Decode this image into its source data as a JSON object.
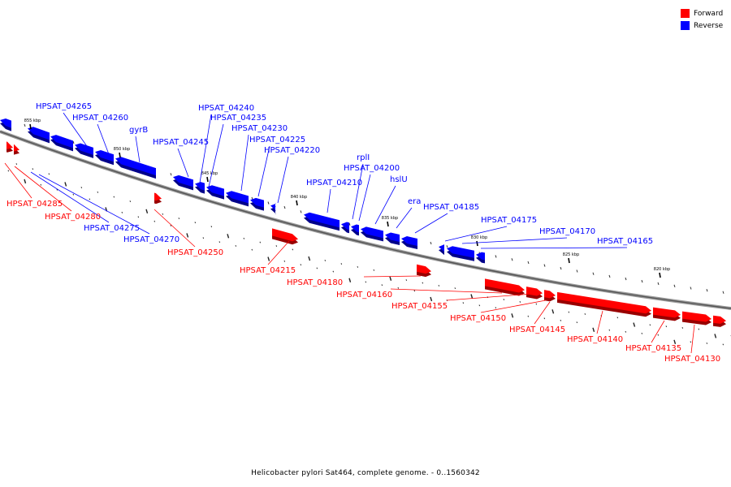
{
  "legend": {
    "forward_label": "Forward",
    "reverse_label": "Reverse",
    "forward_color": "#ff0000",
    "reverse_color": "#0000ff"
  },
  "caption": "Helicobacter pylori Sat464, complete genome. - 0..1560342",
  "colors": {
    "forward": "#ff0000",
    "reverse": "#0000ff",
    "backbone": "#7a7a7a"
  },
  "scale_labels": [
    "855 kbp",
    "850 kbp",
    "845 kbp",
    "840 kbp",
    "835 kbp",
    "830 kbp",
    "825 kbp",
    "820 kbp"
  ],
  "genes": [
    {
      "label": "HPSAT_04265",
      "strand": "reverse"
    },
    {
      "label": "HPSAT_04260",
      "strand": "reverse"
    },
    {
      "label": "gyrB",
      "strand": "reverse"
    },
    {
      "label": "HPSAT_04245",
      "strand": "reverse"
    },
    {
      "label": "HPSAT_04240",
      "strand": "reverse"
    },
    {
      "label": "HPSAT_04235",
      "strand": "reverse"
    },
    {
      "label": "HPSAT_04230",
      "strand": "reverse"
    },
    {
      "label": "HPSAT_04225",
      "strand": "reverse"
    },
    {
      "label": "HPSAT_04220",
      "strand": "reverse"
    },
    {
      "label": "rplI",
      "strand": "reverse"
    },
    {
      "label": "HPSAT_04200",
      "strand": "reverse"
    },
    {
      "label": "HPSAT_04210",
      "strand": "reverse"
    },
    {
      "label": "hslU",
      "strand": "reverse"
    },
    {
      "label": "era",
      "strand": "reverse"
    },
    {
      "label": "HPSAT_04185",
      "strand": "reverse"
    },
    {
      "label": "HPSAT_04175",
      "strand": "reverse"
    },
    {
      "label": "HPSAT_04170",
      "strand": "reverse"
    },
    {
      "label": "HPSAT_04165",
      "strand": "reverse"
    },
    {
      "label": "HPSAT_04285",
      "strand": "forward"
    },
    {
      "label": "HPSAT_04280",
      "strand": "forward"
    },
    {
      "label": "HPSAT_04275",
      "strand": "reverse"
    },
    {
      "label": "HPSAT_04270",
      "strand": "reverse"
    },
    {
      "label": "HPSAT_04250",
      "strand": "forward"
    },
    {
      "label": "HPSAT_04215",
      "strand": "forward"
    },
    {
      "label": "HPSAT_04180",
      "strand": "forward"
    },
    {
      "label": "HPSAT_04160",
      "strand": "forward"
    },
    {
      "label": "HPSAT_04155",
      "strand": "forward"
    },
    {
      "label": "HPSAT_04150",
      "strand": "forward"
    },
    {
      "label": "HPSAT_04145",
      "strand": "forward"
    },
    {
      "label": "HPSAT_04140",
      "strand": "forward"
    },
    {
      "label": "HPSAT_04135",
      "strand": "forward"
    },
    {
      "label": "HPSAT_04130",
      "strand": "forward"
    }
  ]
}
